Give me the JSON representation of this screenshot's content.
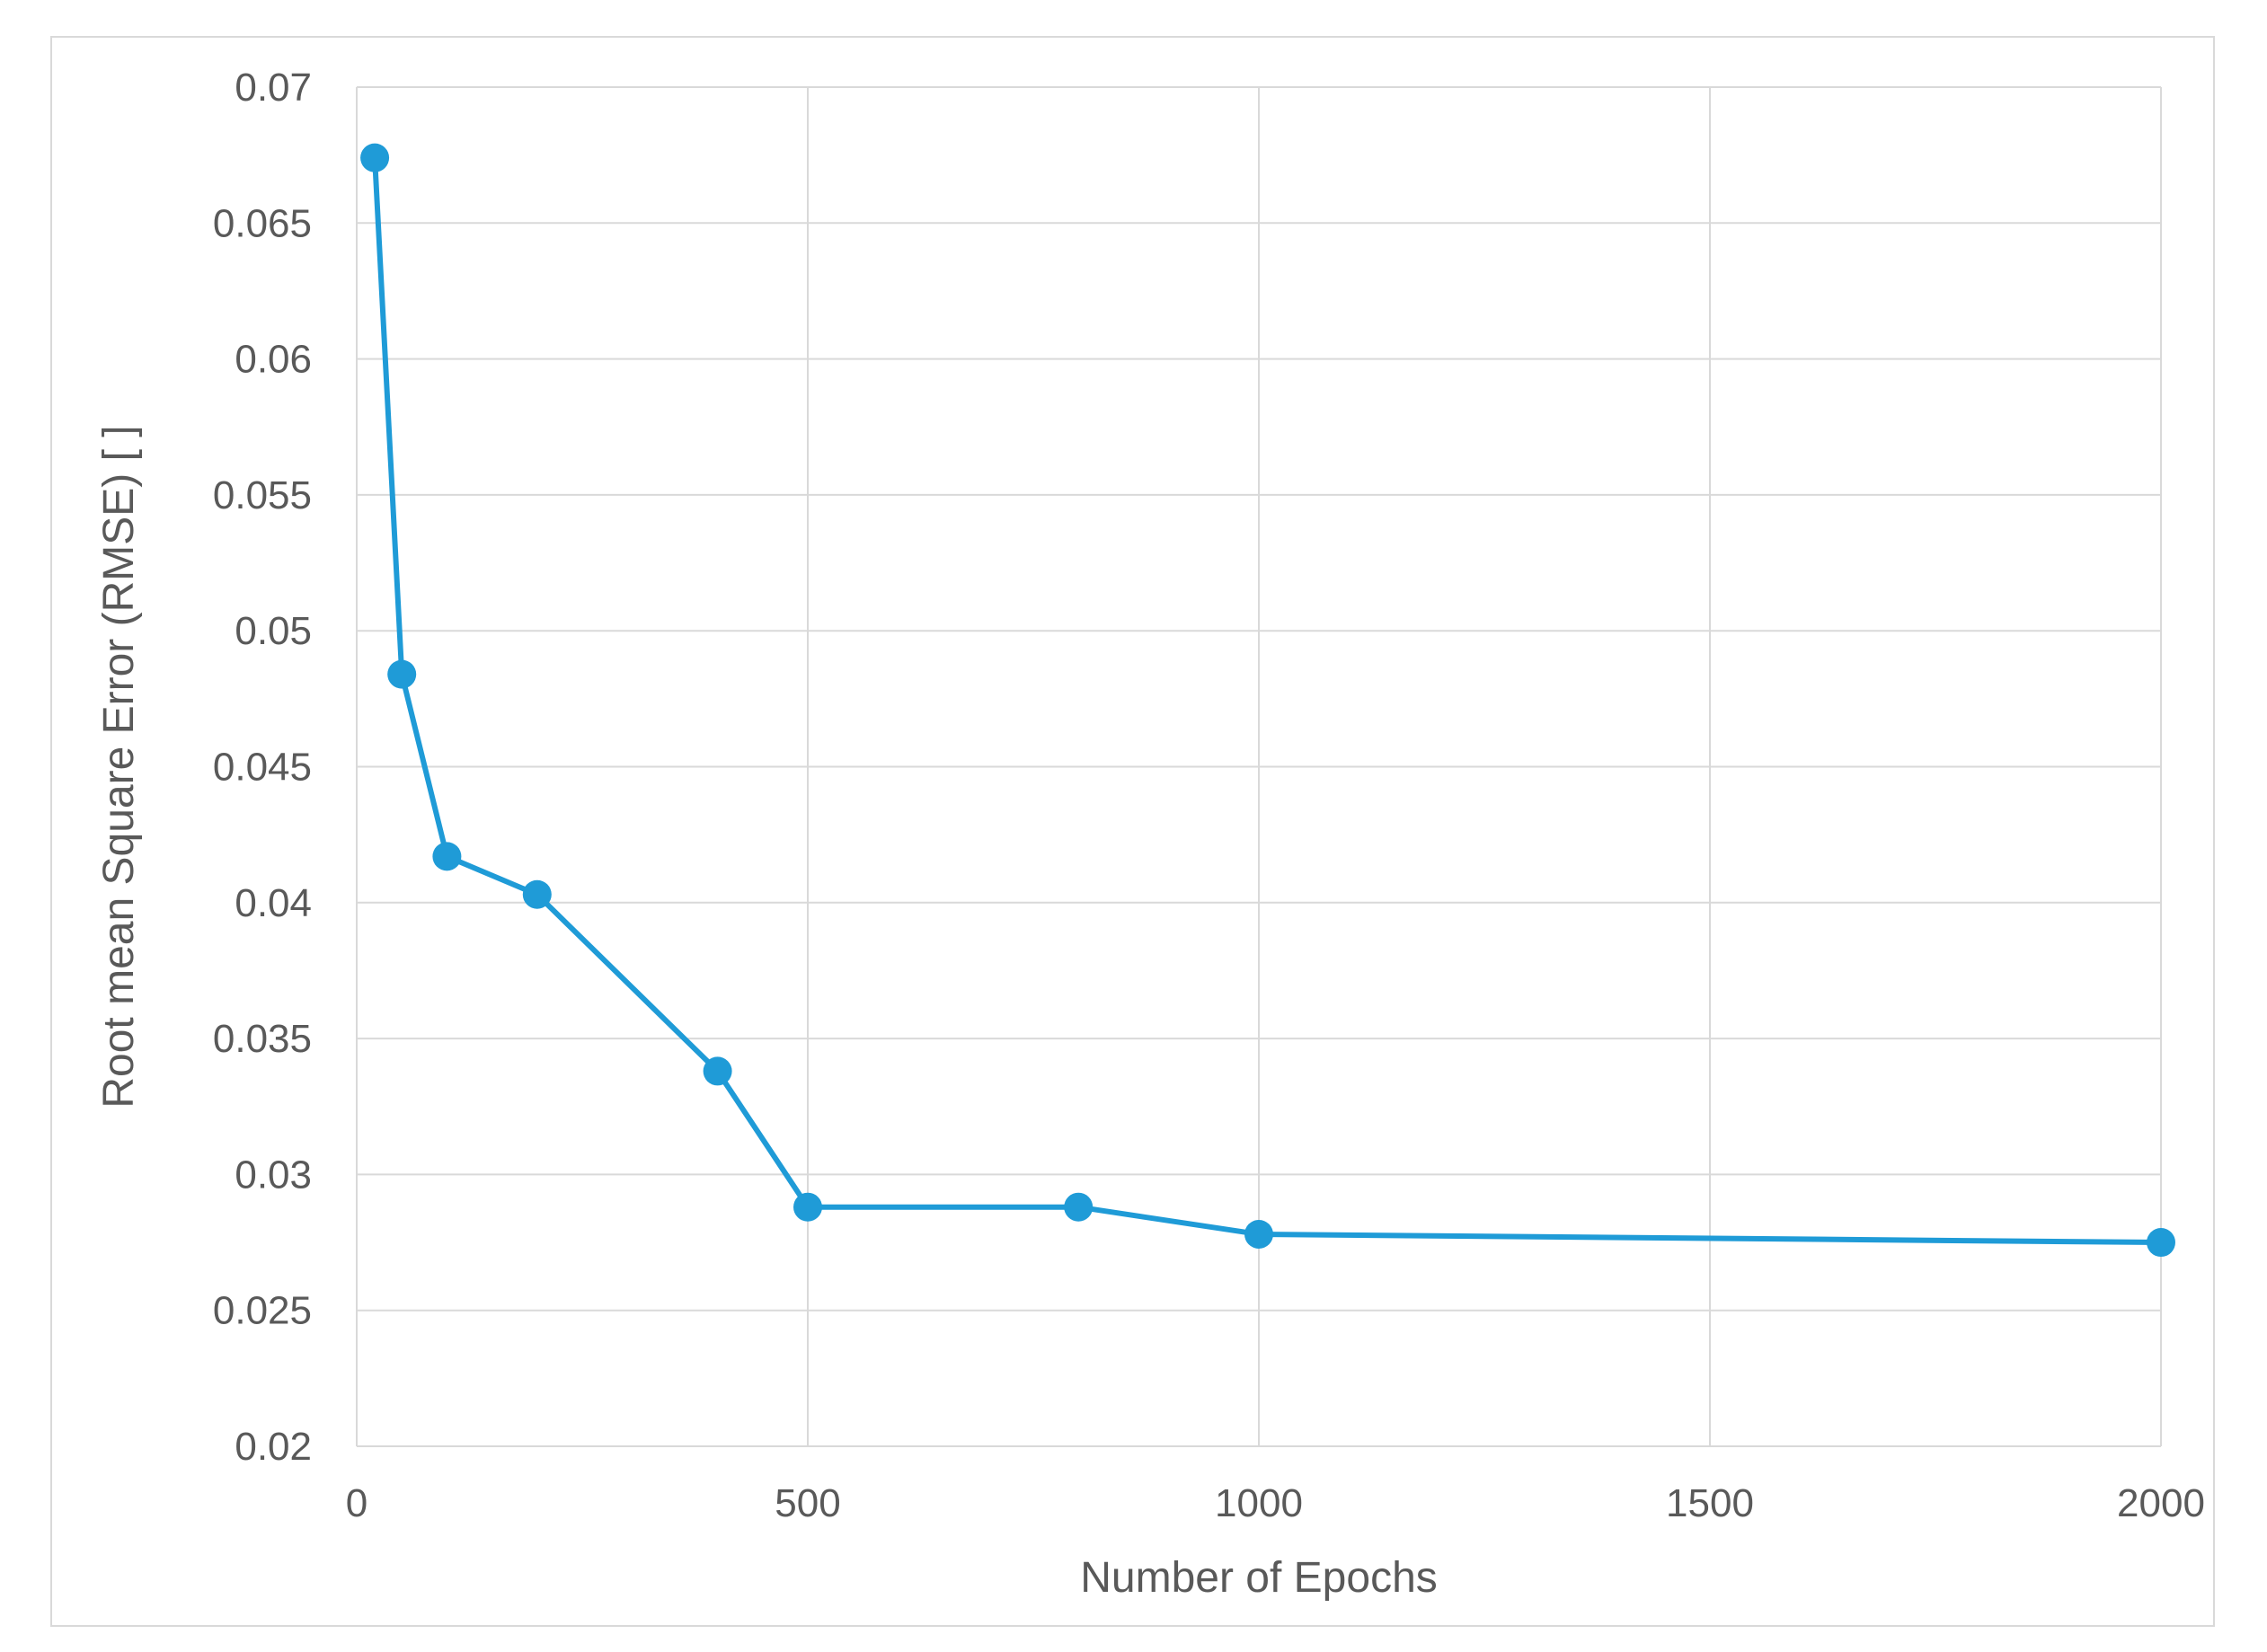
{
  "chart_data": {
    "type": "line",
    "title": "",
    "xlabel": "Number of Epochs",
    "ylabel": "Root mean Square Error (RMSE) [ ]",
    "xlim": [
      0,
      2000
    ],
    "ylim": [
      0.02,
      0.07
    ],
    "x_ticks": [
      0,
      500,
      1000,
      1500,
      2000
    ],
    "x_tick_labels": [
      "0",
      "500",
      "1000",
      "1500",
      "2000"
    ],
    "y_ticks": [
      0.02,
      0.025,
      0.03,
      0.035,
      0.04,
      0.045,
      0.05,
      0.055,
      0.06,
      0.065,
      0.07
    ],
    "y_tick_labels": [
      "0.02",
      "0.025",
      "0.03",
      "0.035",
      "0.04",
      "0.045",
      "0.05",
      "0.055",
      "0.06",
      "0.065",
      "0.07"
    ],
    "grid": true,
    "series": [
      {
        "color": "#1f9bd7",
        "points": [
          {
            "x": 20,
            "y": 0.0674
          },
          {
            "x": 50,
            "y": 0.0484
          },
          {
            "x": 100,
            "y": 0.0417
          },
          {
            "x": 200,
            "y": 0.0403
          },
          {
            "x": 400,
            "y": 0.0338
          },
          {
            "x": 500,
            "y": 0.0288
          },
          {
            "x": 800,
            "y": 0.0288
          },
          {
            "x": 1000,
            "y": 0.0278
          },
          {
            "x": 2000,
            "y": 0.0275
          }
        ]
      }
    ]
  }
}
